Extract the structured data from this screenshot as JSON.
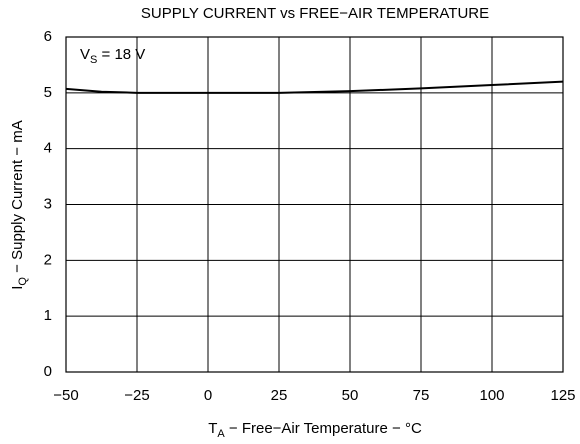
{
  "chart_data": {
    "type": "line",
    "title": "SUPPLY CURRENT vs FREE−AIR TEMPERATURE",
    "x_label": {
      "main": "T",
      "sub": "A",
      "rest": " − Free−Air Temperature − °C"
    },
    "y_label": {
      "main": "I",
      "sub": "Q",
      "rest": " − Supply Current − mA"
    },
    "annotation": {
      "main": "V",
      "sub": "S",
      "rest": " = 18 V"
    },
    "x": [
      -50,
      -37.5,
      -25,
      0,
      25,
      50,
      75,
      100,
      125
    ],
    "values": [
      5.07,
      5.02,
      5.0,
      5.0,
      5.0,
      5.03,
      5.08,
      5.14,
      5.2
    ],
    "color": "#000000",
    "xlim": [
      -50,
      125
    ],
    "xticks": [
      {
        "value": -50,
        "label": "−50"
      },
      {
        "value": -25,
        "label": "−25"
      },
      0,
      25,
      50,
      75,
      100,
      125
    ],
    "ylim": [
      0,
      6
    ],
    "yticks": [
      0,
      1,
      2,
      3,
      4,
      5,
      6
    ],
    "grid": true
  }
}
